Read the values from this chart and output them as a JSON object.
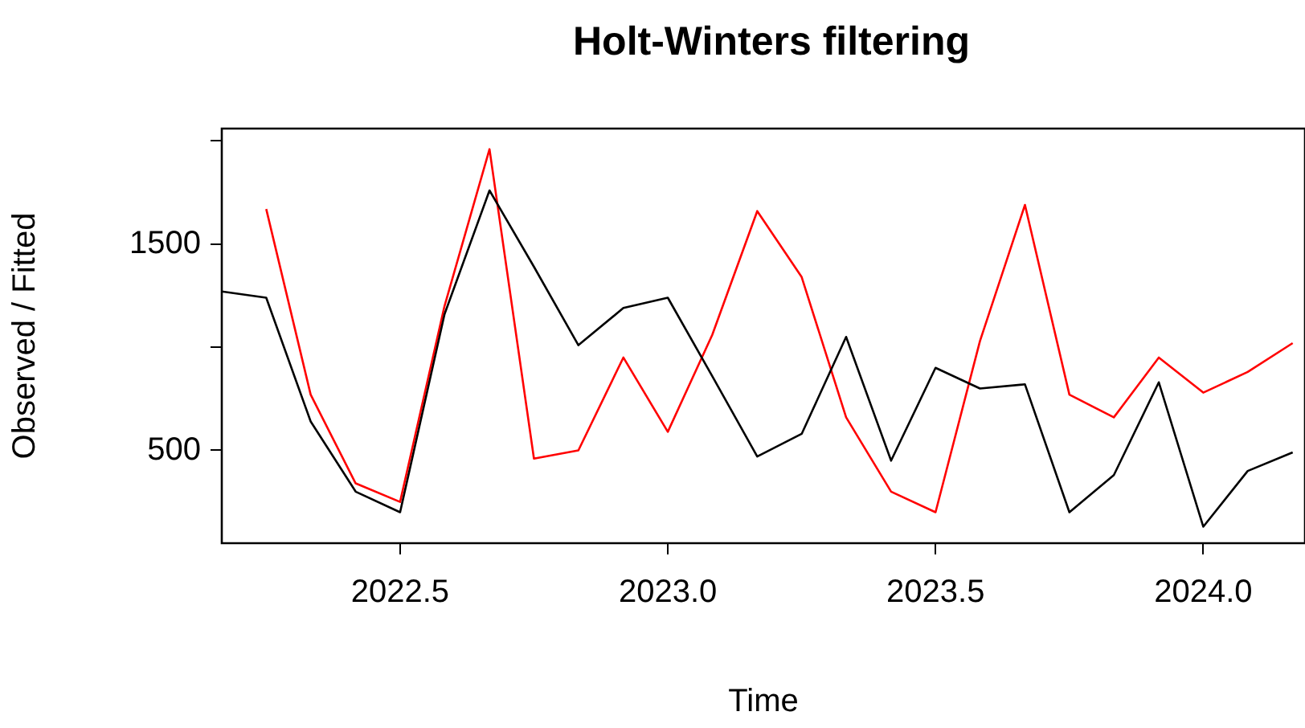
{
  "chart_data": {
    "type": "line",
    "title": "Holt-Winters filtering",
    "xlabel": "Time",
    "ylabel": "Observed / Fitted",
    "x": [
      2022.167,
      2022.25,
      2022.333,
      2022.417,
      2022.5,
      2022.583,
      2022.667,
      2022.75,
      2022.833,
      2022.917,
      2023.0,
      2023.083,
      2023.167,
      2023.25,
      2023.333,
      2023.417,
      2023.5,
      2023.583,
      2023.667,
      2023.75,
      2023.833,
      2023.917,
      2024.0,
      2024.083,
      2024.167
    ],
    "series": [
      {
        "color": "#000000",
        "values": [
          1270,
          1240,
          640,
          300,
          200,
          1160,
          1760,
          1390,
          1010,
          1190,
          1240,
          860,
          470,
          580,
          1050,
          450,
          900,
          800,
          820,
          200,
          380,
          830,
          130,
          400,
          490
        ]
      },
      {
        "color": "#ff0000",
        "values": [
          null,
          1670,
          770,
          340,
          250,
          1200,
          1960,
          460,
          500,
          950,
          590,
          1060,
          1660,
          1340,
          660,
          300,
          200,
          1030,
          1690,
          770,
          660,
          950,
          780,
          880,
          1020
        ]
      }
    ],
    "xlim": [
      2022.167,
      2024.19
    ],
    "xticks": [
      {
        "value": 2022.5,
        "label": "2022.5"
      },
      {
        "value": 2023,
        "label": "2023.0"
      },
      {
        "value": 2023.5,
        "label": "2023.5"
      },
      {
        "value": 2024,
        "label": "2024.0"
      }
    ],
    "ylim": [
      50,
      2060
    ],
    "yticks": [
      500,
      {
        "value": 1000,
        "label": null
      },
      1500,
      {
        "value": 2000,
        "label": null
      }
    ],
    "grid": false,
    "legend": false,
    "marker": "none",
    "line_style": "solid"
  }
}
